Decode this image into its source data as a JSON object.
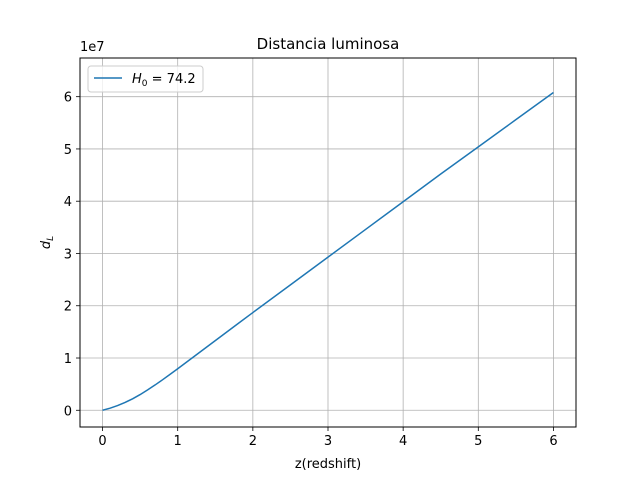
{
  "chart_data": {
    "type": "line",
    "title": "Distancia luminosa",
    "xlabel": "z(redshift)",
    "ylabel_symbol": "d",
    "ylabel_subscript": "L",
    "y_offset_label": "1e7",
    "y_scale": 10000000,
    "xlim": [
      -0.3,
      6.3
    ],
    "ylim": [
      -3200000,
      67400000
    ],
    "x_ticks": [
      0,
      1,
      2,
      3,
      4,
      5,
      6
    ],
    "y_ticks": [
      0,
      1,
      2,
      3,
      4,
      5,
      6
    ],
    "grid": true,
    "legend_position": "upper-left",
    "series": [
      {
        "name_symbol": "H",
        "name_subscript": "0",
        "name_value": " = 74.2",
        "color": "#1f77b4",
        "x": [
          0,
          0.1,
          0.2,
          0.3,
          0.4,
          0.5,
          0.6,
          0.7,
          0.8,
          0.9,
          1.0,
          1.2,
          1.4,
          1.6,
          1.8,
          2.0,
          2.5,
          3.0,
          3.5,
          4.0,
          4.5,
          5.0,
          5.5,
          6.0
        ],
        "y": [
          0,
          400000,
          900000,
          1500000,
          2200000,
          3000000,
          3900000,
          4850000,
          5850000,
          6900000,
          7950000,
          10100000,
          12250000,
          14400000,
          16550000,
          18700000,
          24000000,
          29300000,
          34600000,
          39900000,
          45200000,
          50400000,
          55600000,
          60800000
        ]
      }
    ]
  }
}
